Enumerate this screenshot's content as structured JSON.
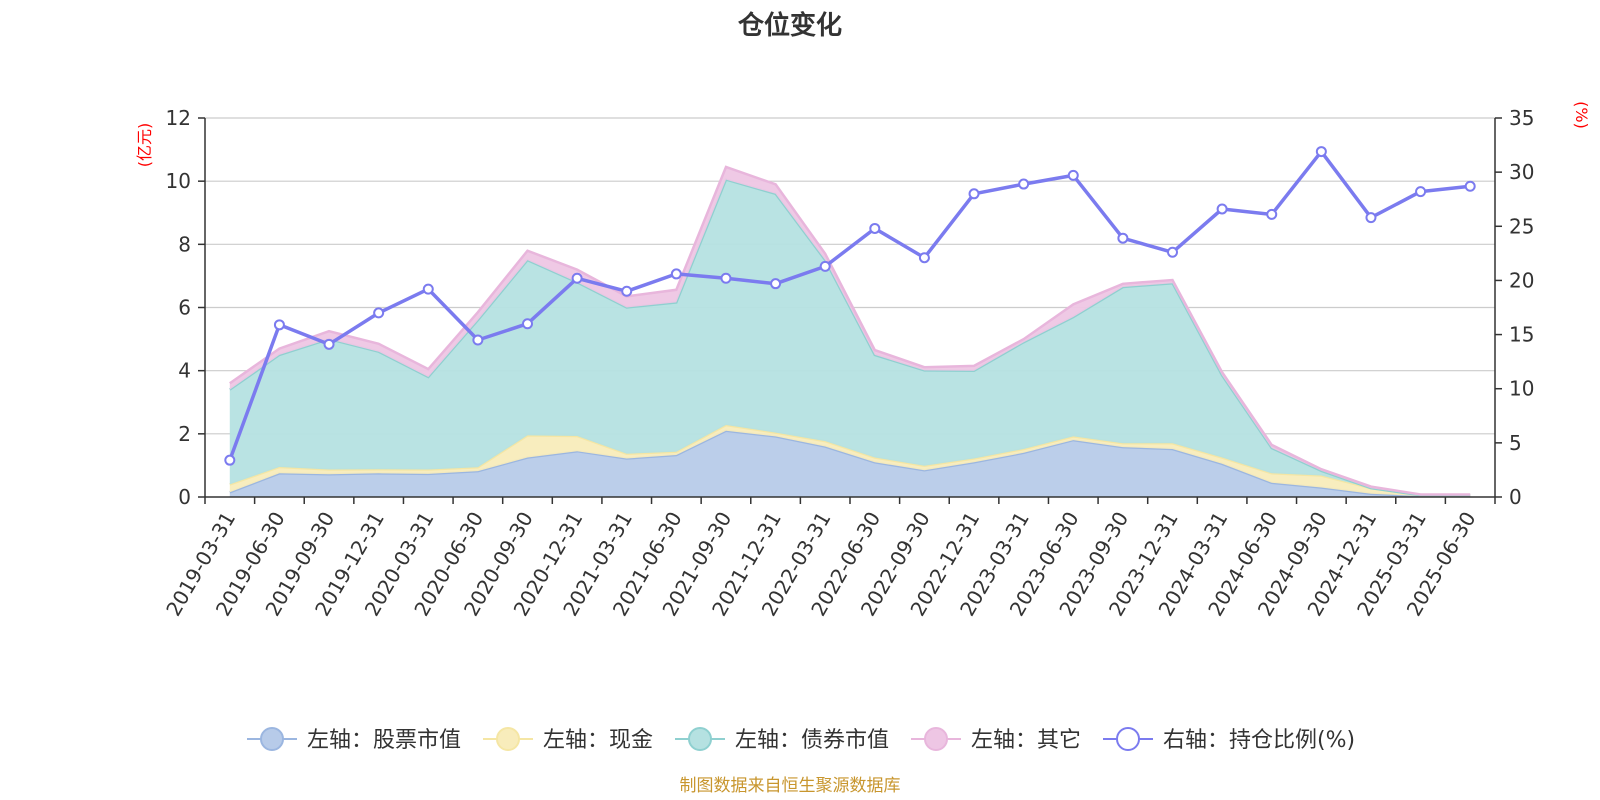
{
  "chart_data": {
    "type": "area",
    "title": "仓位变化",
    "source_note": "制图数据来自恒生聚源数据库",
    "left_axis": {
      "unit_label": "(亿元)",
      "ylim": [
        0,
        12
      ],
      "ticks": [
        0,
        2,
        4,
        6,
        8,
        10,
        12
      ]
    },
    "right_axis": {
      "unit_label": "(%)",
      "ylim": [
        0,
        35
      ],
      "ticks": [
        0,
        5,
        10,
        15,
        20,
        25,
        30,
        35
      ]
    },
    "categories": [
      "2019-03-31",
      "2019-06-30",
      "2019-09-30",
      "2019-12-31",
      "2020-03-31",
      "2020-06-30",
      "2020-09-30",
      "2020-12-31",
      "2021-03-31",
      "2021-06-30",
      "2021-09-30",
      "2021-12-31",
      "2022-03-31",
      "2022-06-30",
      "2022-09-30",
      "2022-12-31",
      "2023-03-31",
      "2023-06-30",
      "2023-09-30",
      "2023-12-31",
      "2024-03-31",
      "2024-06-30",
      "2024-09-30",
      "2024-12-31",
      "2025-03-31",
      "2025-06-30"
    ],
    "stacked_series": [
      {
        "name": "左轴：股票市值",
        "color": "#9bb6e0",
        "fill": "#b7cbe9",
        "values": [
          0.15,
          0.75,
          0.72,
          0.75,
          0.73,
          0.82,
          1.25,
          1.45,
          1.22,
          1.33,
          2.1,
          1.92,
          1.6,
          1.1,
          0.85,
          1.1,
          1.4,
          1.8,
          1.58,
          1.52,
          1.05,
          0.45,
          0.3,
          0.1,
          0.03,
          0.03
        ]
      },
      {
        "name": "左轴：现金",
        "color": "#f5e6a4",
        "fill": "#f8ecbb",
        "values": [
          0.25,
          0.2,
          0.15,
          0.13,
          0.14,
          0.12,
          0.7,
          0.48,
          0.15,
          0.1,
          0.18,
          0.12,
          0.17,
          0.15,
          0.14,
          0.12,
          0.12,
          0.12,
          0.12,
          0.18,
          0.2,
          0.3,
          0.38,
          0.18,
          0.03,
          0.03
        ]
      },
      {
        "name": "左轴：债券市值",
        "color": "#8fd0d0",
        "fill": "#b5e1e1",
        "values": [
          3.0,
          3.55,
          4.13,
          3.72,
          2.93,
          4.66,
          5.55,
          4.87,
          4.63,
          4.73,
          7.77,
          7.56,
          5.73,
          3.25,
          3.02,
          2.78,
          3.38,
          3.78,
          4.95,
          5.07,
          2.6,
          0.8,
          0.15,
          0.0,
          0.0,
          0.0
        ]
      },
      {
        "name": "左轴：其它",
        "color": "#e8b6dc",
        "fill": "#eec6e4",
        "values": [
          0.2,
          0.2,
          0.25,
          0.25,
          0.25,
          0.25,
          0.3,
          0.4,
          0.35,
          0.4,
          0.4,
          0.3,
          0.2,
          0.15,
          0.1,
          0.15,
          0.1,
          0.4,
          0.1,
          0.1,
          0.1,
          0.1,
          0.05,
          0.05,
          0.02,
          0.02
        ]
      }
    ],
    "line_series": {
      "name": "右轴：持仓比例(%)",
      "color": "#7b7bef",
      "values": [
        3.4,
        15.9,
        14.1,
        17.0,
        19.2,
        14.5,
        16.0,
        20.2,
        19.0,
        20.6,
        20.2,
        19.7,
        21.3,
        24.8,
        22.1,
        28.0,
        28.9,
        29.7,
        23.9,
        22.6,
        26.6,
        26.1,
        31.9,
        25.8,
        28.2,
        28.7
      ]
    },
    "legend_position": "bottom",
    "grid": true
  }
}
